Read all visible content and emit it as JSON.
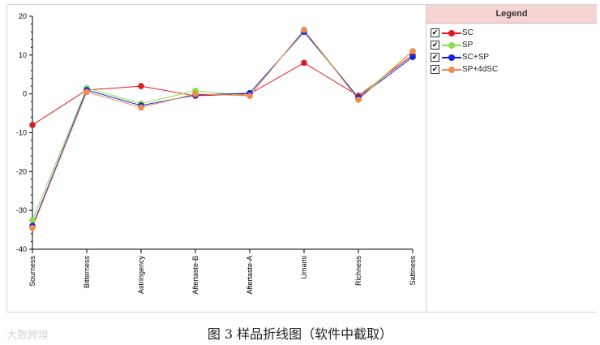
{
  "chart_data": {
    "type": "line",
    "categories": [
      "Sourness",
      "Bitterness",
      "Astringency",
      "Aftertaste-B",
      "Aftertaste-A",
      "Umami",
      "Richness",
      "Saltiness"
    ],
    "ylim": [
      -40,
      20
    ],
    "yticks": [
      20,
      10,
      0,
      -10,
      -20,
      -30,
      -40
    ],
    "grid": false,
    "legend_placement": "right",
    "series": [
      {
        "name": "SC",
        "color": "#e0191b",
        "values": [
          -8,
          1,
          2,
          -0.5,
          0,
          8,
          -0.5,
          10
        ]
      },
      {
        "name": "SP",
        "color": "#88e04a",
        "values": [
          -32.5,
          1.5,
          -2.5,
          0.8,
          -0.5,
          16.5,
          -1,
          11
        ]
      },
      {
        "name": "SC+SP",
        "color": "#1122dd",
        "values": [
          -34,
          1,
          -3,
          -0.3,
          0.2,
          16,
          -1,
          9.5
        ]
      },
      {
        "name": "SP+4dSC",
        "color": "#f08a50",
        "values": [
          -34.5,
          0.5,
          -3.5,
          0,
          -0.5,
          16.5,
          -1.5,
          11
        ]
      }
    ]
  },
  "legend": {
    "title": "Legend",
    "items": [
      {
        "label": "SC",
        "color": "#e0191b"
      },
      {
        "label": "SP",
        "color": "#88e04a"
      },
      {
        "label": "SC+SP",
        "color": "#1122dd"
      },
      {
        "label": "SP+4dSC",
        "color": "#f08a50"
      }
    ],
    "check_mark": "✔"
  },
  "caption": "图 3  样品折线图（软件中截取）",
  "watermark": "大数跨境"
}
